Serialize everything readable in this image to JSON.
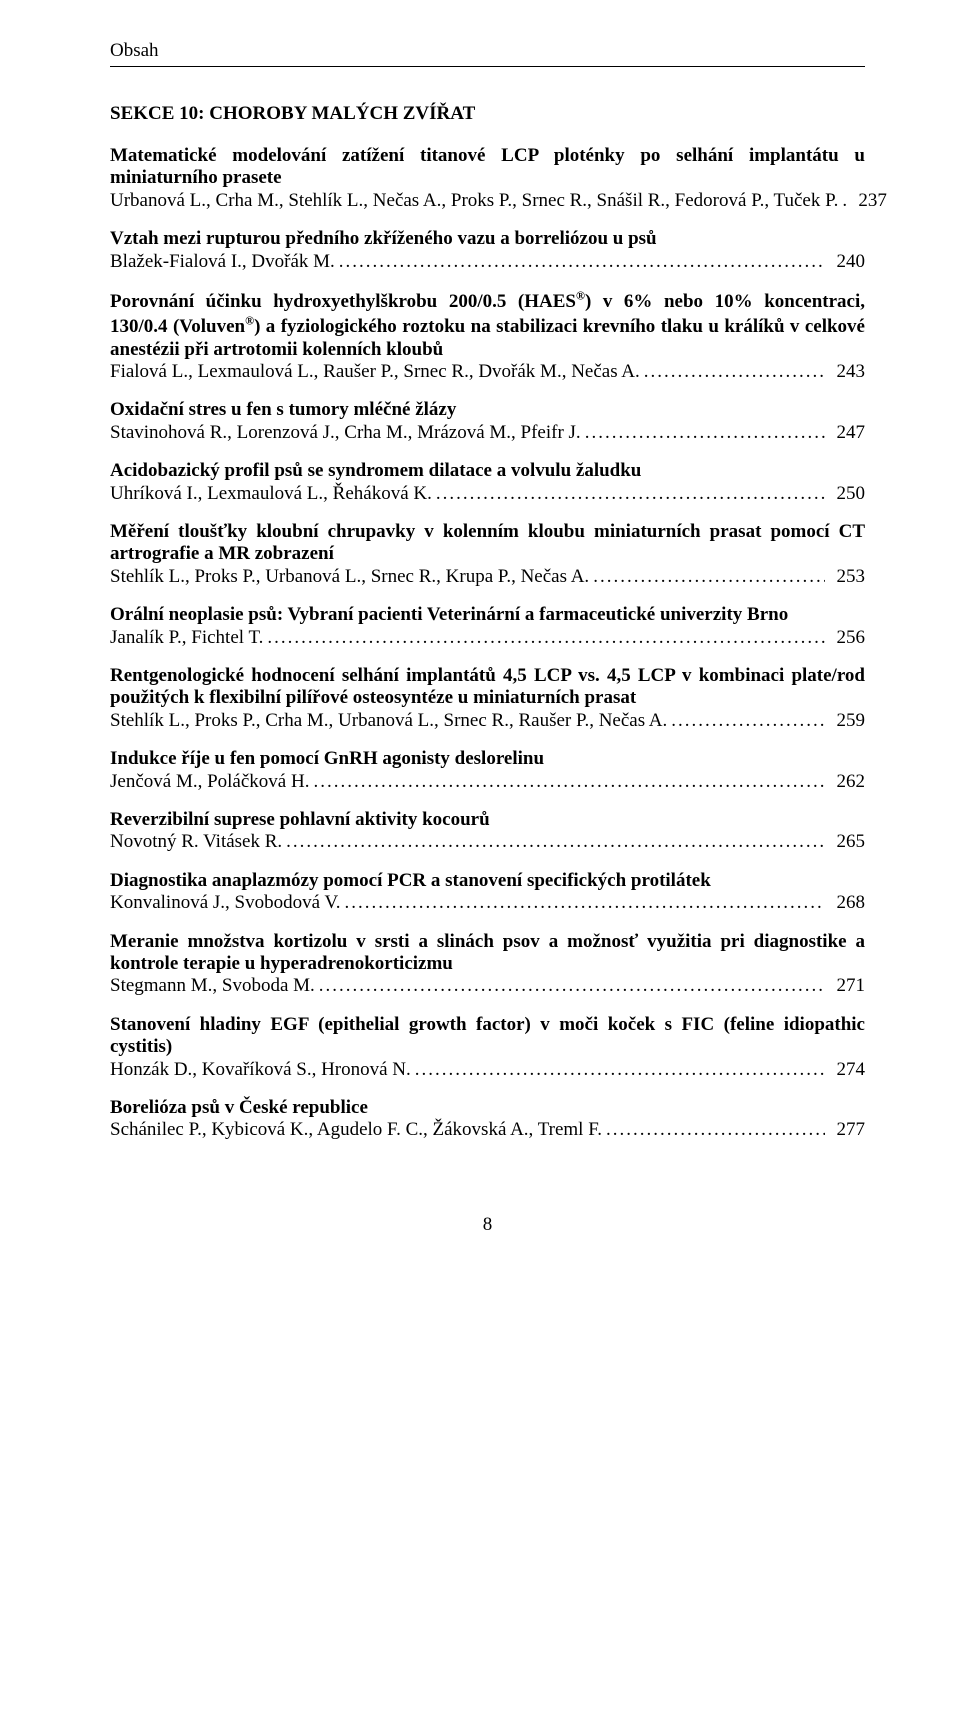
{
  "page": {
    "running_head": "Obsah",
    "section_title": "SEKCE 10: CHOROBY MALÝCH ZVÍŘAT",
    "footer_page_number": "8"
  },
  "typography": {
    "font_family": "Times New Roman",
    "body_fontsize_pt": 14,
    "title_fontweight": "bold",
    "text_color": "#000000",
    "background_color": "#ffffff",
    "rule_color": "#000000"
  },
  "entries": [
    {
      "title": "Matematické modelování zatížení titanové LCP ploténky po selhání implantátu u miniaturního prasete",
      "authors_last_pre": "Urbanová L., Crha M., Stehlík L., Nečas A., Proks P., Srnec R., Snášil R., Fedorová P., Tuček P. ",
      "page": "237"
    },
    {
      "title": "Vztah mezi rupturou předního zkříženého vazu a borreliózou u psů",
      "authors_last_pre": "Blažek-Fialová I., Dvořák M. ",
      "page": "240"
    },
    {
      "title_pre": "Porovnání účinku hydroxyethylškrobu 200/0.5 (HAES",
      "title_sup1": "®",
      "title_mid1": ") v 6% nebo 10% koncentraci, 130/0.4 (Voluven",
      "title_sup2": "®",
      "title_post": ") a fyziologického roztoku na stabilizaci krevního tlaku u králíků v celkové anestézii při artrotomii kolenních kloubů",
      "authors_last_pre": "Fialová L., Lexmaulová L., Raušer P., Srnec R., Dvořák M., Nečas A. ",
      "page": "243"
    },
    {
      "title": "Oxidační stres u fen s tumory mléčné žlázy",
      "authors_last_pre": "Stavinohová R., Lorenzová J., Crha M., Mrázová M., Pfeifr J. ",
      "page": "247"
    },
    {
      "title": "Acidobazický profil psů se syndromem dilatace a volvulu žaludku",
      "authors_last_pre": "Uhríková I., Lexmaulová L., Řeháková K. ",
      "page": "250"
    },
    {
      "title": "Měření tloušťky kloubní chrupavky v kolenním kloubu miniaturních prasat pomocí CT artrografie a MR zobrazení",
      "authors_last_pre": "Stehlík L., Proks P., Urbanová L., Srnec R., Krupa P., Nečas A. ",
      "page": "253"
    },
    {
      "title": "Orální neoplasie psů: Vybraní pacienti Veterinární a farmaceutické univerzity Brno",
      "authors_last_pre": "Janalík P., Fichtel T. ",
      "page": "256"
    },
    {
      "title": "Rentgenologické hodnocení selhání implantátů 4,5 LCP vs. 4,5 LCP v kombinaci plate/rod použitých k flexibilní pilířové osteosyntéze u miniaturních prasat",
      "authors_last_pre": "Stehlík L., Proks P., Crha M., Urbanová L., Srnec R., Raušer P., Nečas A. ",
      "page": "259"
    },
    {
      "title": "Indukce říje u fen pomocí GnRH agonisty deslorelinu",
      "authors_last_pre": "Jenčová M., Poláčková H. ",
      "page": "262"
    },
    {
      "title": "Reverzibilní suprese pohlavní aktivity kocourů",
      "authors_last_pre": "Novotný R. Vitásek R. ",
      "page": "265"
    },
    {
      "title": "Diagnostika anaplazmózy pomocí PCR a stanovení specifických protilátek",
      "authors_last_pre": "Konvalinová J., Svobodová V. ",
      "page": "268"
    },
    {
      "title": "Meranie množstva kortizolu v srsti a slinách psov a možnosť využitia pri diagnostike a kontrole terapie u hyperadrenokorticizmu",
      "authors_last_pre": "Stegmann M., Svoboda M. ",
      "page": "271"
    },
    {
      "title": "Stanovení hladiny EGF (epithelial growth factor) v moči koček s FIC (feline idiopathic cystitis)",
      "authors_last_pre": "Honzák D., Kovaříková S., Hronová N. ",
      "page": "274"
    },
    {
      "title": "Borelióza psů v České republice",
      "authors_last_pre": "Schánilec P., Kybicová K., Agudelo F. C., Žákovská A., Treml F. ",
      "page": "277"
    }
  ]
}
